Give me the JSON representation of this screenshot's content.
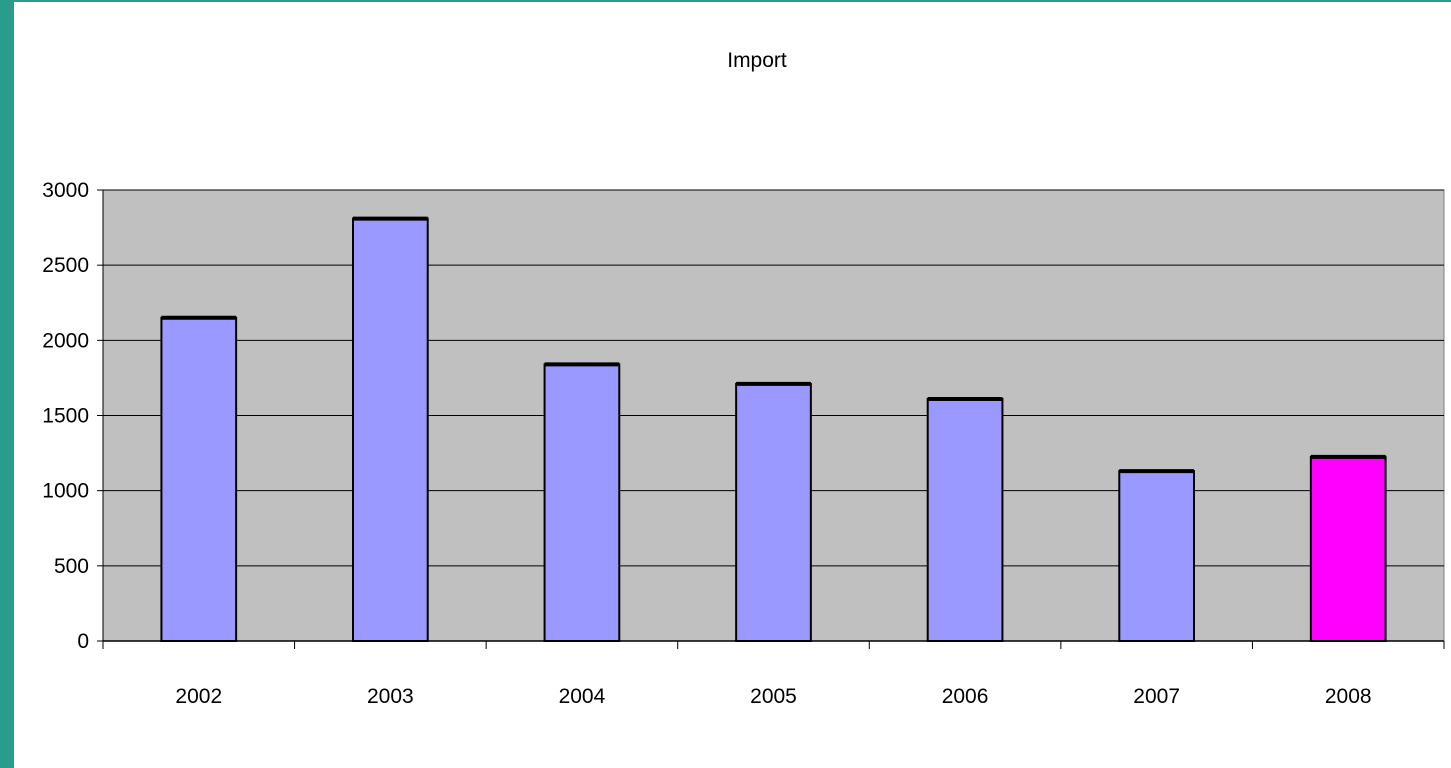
{
  "chart_data": {
    "type": "bar",
    "title": "Import",
    "xlabel": "",
    "ylabel": "",
    "categories": [
      "2002",
      "2003",
      "2004",
      "2005",
      "2006",
      "2007",
      "2008"
    ],
    "values": [
      2150,
      2810,
      1840,
      1710,
      1610,
      1130,
      1225
    ],
    "bar_colors": [
      "#9999ff",
      "#9999ff",
      "#9999ff",
      "#9999ff",
      "#9999ff",
      "#9999ff",
      "#ff00ff"
    ],
    "plot_background": "#c0c0c0",
    "ylim": [
      0,
      3000
    ],
    "yticks": [
      "0",
      "500",
      "1000",
      "1500",
      "2000",
      "2500",
      "3000"
    ],
    "grid": true,
    "legend": "none"
  }
}
